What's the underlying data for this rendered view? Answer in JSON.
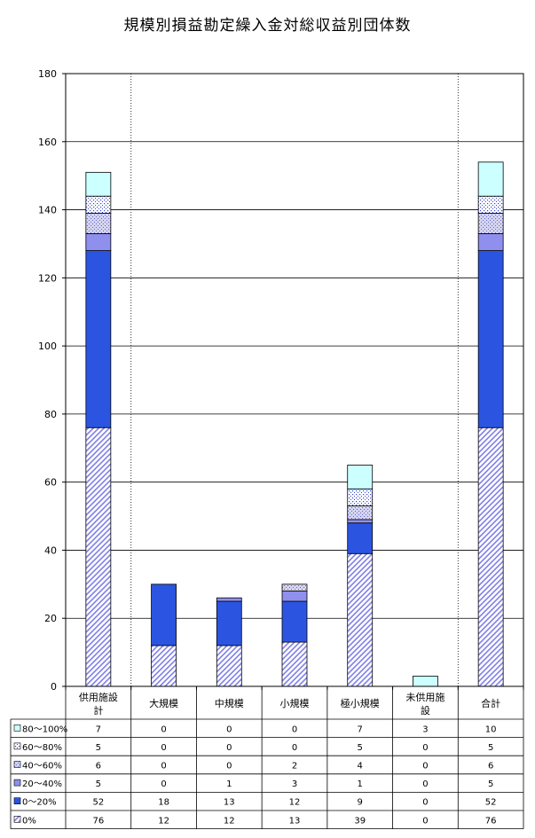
{
  "chart_data": {
    "type": "bar",
    "stacked": true,
    "title": "規模別損益勘定繰入金対総収益別団体数",
    "categories": [
      "供用施設計",
      "大規模",
      "中規模",
      "小規模",
      "極小規模",
      "未供用施設",
      "合計"
    ],
    "category_lines": [
      [
        "供用施設",
        "計"
      ],
      [
        "大規模"
      ],
      [
        "中規模"
      ],
      [
        "小規模"
      ],
      [
        "極小規模"
      ],
      [
        "未供用施",
        "設"
      ],
      [
        "合計"
      ]
    ],
    "ylim": [
      0,
      180
    ],
    "yticks": [
      0,
      20,
      40,
      60,
      80,
      100,
      120,
      140,
      160,
      180
    ],
    "grid": true,
    "legend_placement": "table-below",
    "series": [
      {
        "name": "0%",
        "values": [
          76,
          12,
          12,
          13,
          39,
          0,
          76
        ],
        "color": "#9999ee",
        "pattern": "diagonal"
      },
      {
        "name": "0～20%",
        "values": [
          52,
          18,
          13,
          12,
          9,
          0,
          52
        ],
        "color": "#2b55e0",
        "pattern": "solid"
      },
      {
        "name": "20～40%",
        "values": [
          5,
          0,
          1,
          3,
          1,
          0,
          5
        ],
        "color": "#8f8fee",
        "pattern": "solid"
      },
      {
        "name": "40～60%",
        "values": [
          6,
          0,
          0,
          2,
          4,
          0,
          6
        ],
        "color": "#b9b9e6",
        "pattern": "dots"
      },
      {
        "name": "60～80%",
        "values": [
          5,
          0,
          0,
          0,
          5,
          0,
          5
        ],
        "color": "#ffffff",
        "pattern": "dots-blue"
      },
      {
        "name": "80～100%",
        "values": [
          7,
          0,
          0,
          0,
          7,
          3,
          10
        ],
        "color": "#ccffff",
        "pattern": "solid"
      }
    ]
  }
}
